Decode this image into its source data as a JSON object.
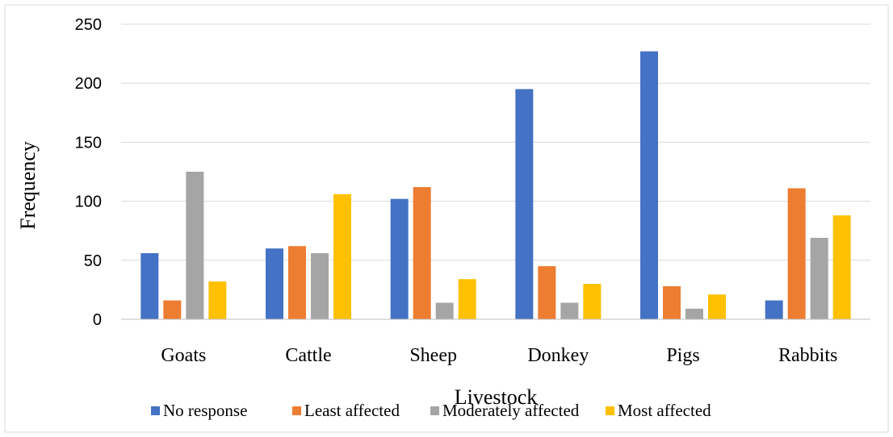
{
  "chart_data": {
    "type": "bar",
    "title": "",
    "xlabel": "Livestock",
    "ylabel": "Frequency",
    "ylim": [
      0,
      250
    ],
    "yticks": [
      0,
      50,
      100,
      150,
      200,
      250
    ],
    "grid": true,
    "legend_position": "bottom",
    "categories": [
      "Goats",
      "Cattle",
      "Sheep",
      "Donkey",
      "Pigs",
      "Rabbits"
    ],
    "series": [
      {
        "name": "No response",
        "color": "#4472C4",
        "values": [
          56,
          60,
          102,
          195,
          227,
          16
        ]
      },
      {
        "name": "Least affected",
        "color": "#ED7D31",
        "values": [
          16,
          62,
          112,
          45,
          28,
          111
        ]
      },
      {
        "name": "Moderately affected",
        "color": "#A5A5A5",
        "values": [
          125,
          56,
          14,
          14,
          9,
          69
        ]
      },
      {
        "name": "Most affected",
        "color": "#FFC000",
        "values": [
          32,
          106,
          34,
          30,
          21,
          88
        ]
      }
    ]
  }
}
